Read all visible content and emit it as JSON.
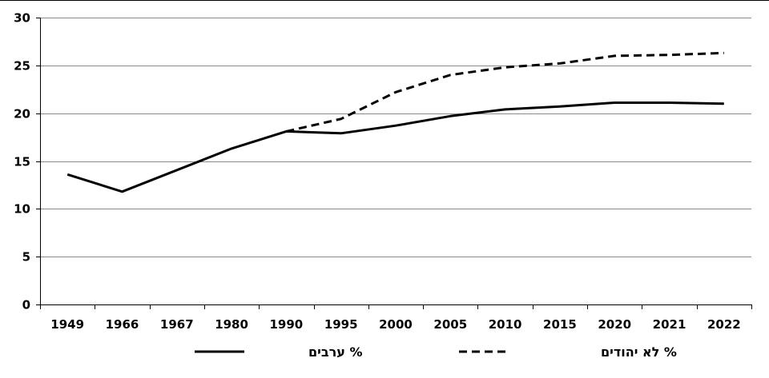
{
  "chart_data": {
    "type": "line",
    "title": "",
    "xlabel": "",
    "ylabel": "",
    "categories": [
      "1949",
      "1966",
      "1967",
      "1980",
      "1990",
      "1995",
      "2000",
      "2005",
      "2010",
      "2015",
      "2020",
      "2021",
      "2022"
    ],
    "ylim": [
      0,
      30
    ],
    "yticks": [
      0,
      5,
      10,
      15,
      20,
      25,
      30
    ],
    "grid": "horizontal",
    "legend_position": "bottom",
    "series": [
      {
        "name": "% ערבים",
        "style": "solid",
        "color": "#000000",
        "values": [
          13.6,
          11.8,
          null,
          16.3,
          18.1,
          17.9,
          18.7,
          19.7,
          20.4,
          20.7,
          21.1,
          21.1,
          21.0
        ]
      },
      {
        "name": "% לא יהודים",
        "style": "dashed",
        "color": "#000000",
        "values": [
          null,
          null,
          null,
          null,
          18.1,
          19.4,
          22.2,
          24.0,
          24.8,
          25.2,
          26.0,
          26.1,
          26.3
        ]
      }
    ]
  }
}
